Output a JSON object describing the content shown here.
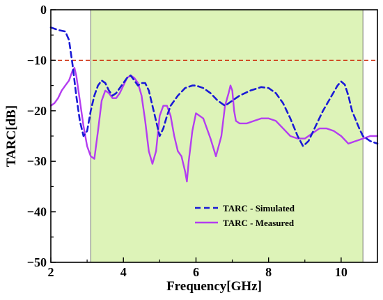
{
  "chart_data": {
    "type": "line",
    "title": "",
    "xlabel": "Frequency[GHz]",
    "ylabel": "TARC[dB]",
    "xlim": [
      2,
      11
    ],
    "ylim": [
      -50,
      0
    ],
    "xticks": [
      2,
      4,
      6,
      8,
      10
    ],
    "yticks": [
      0,
      -10,
      -20,
      -30,
      -40,
      -50
    ],
    "grid": false,
    "legend_position": "bottom-right",
    "shaded_band": {
      "x_from": 3.1,
      "x_to": 10.6,
      "color": "#ddf3b8"
    },
    "reference_line": {
      "y": -10,
      "color": "#cc2200",
      "style": "dashed"
    },
    "series": [
      {
        "name": "TARC - Simulated",
        "color": "#1a1ad6",
        "style": "dashed",
        "x": [
          2.0,
          2.2,
          2.4,
          2.5,
          2.6,
          2.7,
          2.8,
          2.9,
          3.0,
          3.1,
          3.2,
          3.3,
          3.4,
          3.5,
          3.6,
          3.7,
          3.8,
          3.9,
          4.0,
          4.1,
          4.2,
          4.3,
          4.4,
          4.5,
          4.6,
          4.7,
          4.8,
          4.9,
          5.0,
          5.1,
          5.2,
          5.3,
          5.5,
          5.7,
          5.9,
          6.0,
          6.2,
          6.4,
          6.6,
          6.8,
          7.0,
          7.2,
          7.5,
          7.8,
          8.0,
          8.2,
          8.4,
          8.6,
          8.8,
          8.95,
          9.1,
          9.3,
          9.5,
          9.7,
          9.9,
          10.0,
          10.1,
          10.2,
          10.3,
          10.5,
          10.6,
          10.8,
          11.0
        ],
        "y": [
          -3.5,
          -4.0,
          -4.3,
          -6.0,
          -11.0,
          -17.0,
          -22.0,
          -25.0,
          -24.0,
          -20.0,
          -17.0,
          -15.0,
          -14.0,
          -14.5,
          -16.0,
          -17.0,
          -16.5,
          -15.5,
          -14.5,
          -13.5,
          -13.0,
          -14.0,
          -15.0,
          -14.5,
          -14.5,
          -16.0,
          -19.0,
          -22.0,
          -25.0,
          -23.5,
          -21.0,
          -19.0,
          -17.0,
          -15.5,
          -15.0,
          -15.0,
          -15.5,
          -16.5,
          -18.0,
          -19.0,
          -18.0,
          -17.0,
          -16.0,
          -15.3,
          -15.5,
          -16.5,
          -18.5,
          -21.5,
          -25.0,
          -27.0,
          -26.0,
          -23.0,
          -20.0,
          -17.5,
          -15.0,
          -14.2,
          -14.8,
          -17.0,
          -20.0,
          -23.5,
          -25.0,
          -26.0,
          -26.5
        ]
      },
      {
        "name": "TARC - Measured",
        "color": "#b43df0",
        "style": "solid",
        "x": [
          2.0,
          2.1,
          2.2,
          2.3,
          2.4,
          2.5,
          2.6,
          2.65,
          2.7,
          2.8,
          2.9,
          3.0,
          3.1,
          3.2,
          3.3,
          3.4,
          3.5,
          3.6,
          3.7,
          3.8,
          3.9,
          4.0,
          4.1,
          4.2,
          4.3,
          4.4,
          4.5,
          4.6,
          4.7,
          4.8,
          4.9,
          5.0,
          5.1,
          5.2,
          5.3,
          5.4,
          5.5,
          5.6,
          5.7,
          5.75,
          5.8,
          5.9,
          6.0,
          6.2,
          6.4,
          6.55,
          6.7,
          6.8,
          6.9,
          6.95,
          7.0,
          7.05,
          7.1,
          7.2,
          7.4,
          7.6,
          7.8,
          8.0,
          8.2,
          8.4,
          8.6,
          8.8,
          9.0,
          9.2,
          9.4,
          9.6,
          9.8,
          10.0,
          10.2,
          10.4,
          10.6,
          10.8,
          11.0
        ],
        "y": [
          -19.0,
          -18.5,
          -17.5,
          -16.0,
          -15.0,
          -14.0,
          -12.0,
          -11.5,
          -13.0,
          -18.0,
          -23.0,
          -27.0,
          -29.0,
          -29.5,
          -24.0,
          -18.0,
          -16.0,
          -16.5,
          -17.5,
          -17.5,
          -16.5,
          -15.0,
          -13.5,
          -13.0,
          -13.5,
          -14.5,
          -17.0,
          -22.0,
          -28.0,
          -30.5,
          -28.0,
          -21.0,
          -19.0,
          -19.0,
          -21.0,
          -25.0,
          -28.0,
          -29.0,
          -32.0,
          -34.0,
          -30.0,
          -24.0,
          -20.5,
          -21.5,
          -25.5,
          -29.0,
          -25.0,
          -19.0,
          -16.5,
          -15.0,
          -16.0,
          -20.0,
          -22.0,
          -22.5,
          -22.5,
          -22.0,
          -21.5,
          -21.5,
          -22.0,
          -23.5,
          -25.0,
          -25.5,
          -25.5,
          -24.5,
          -23.5,
          -23.5,
          -24.0,
          -25.0,
          -26.5,
          -26.0,
          -25.5,
          -25.0,
          -25.0
        ]
      }
    ]
  }
}
